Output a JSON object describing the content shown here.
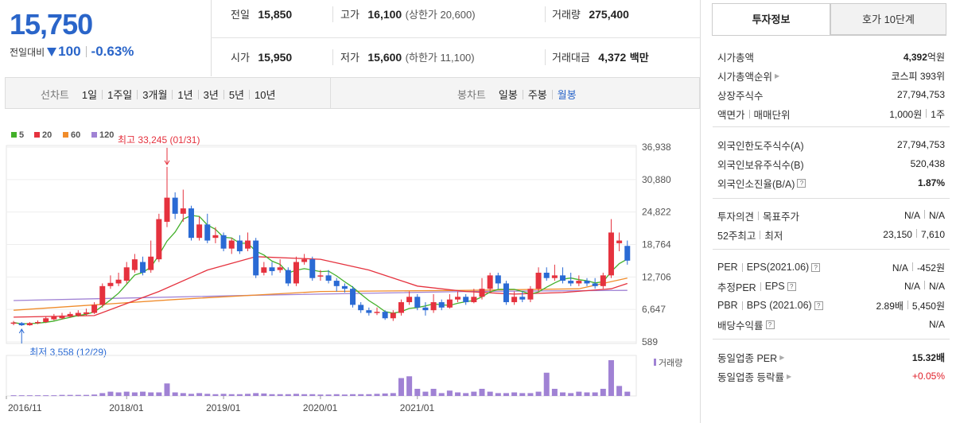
{
  "quote": {
    "price": "15,750",
    "change_label": "전일대비",
    "change_value": "100",
    "change_pct": "-0.63%",
    "prev_label": "전일",
    "prev_value": "15,850",
    "high_label": "고가",
    "high_value": "16,100",
    "upper_limit": "(상한가 20,600)",
    "volume_label": "거래량",
    "volume_value": "275,400",
    "open_label": "시가",
    "open_value": "15,950",
    "low_label": "저가",
    "low_value": "15,600",
    "lower_limit": "(하한가 11,100)",
    "amount_label": "거래대금",
    "amount_value": "4,372",
    "amount_unit": "백만"
  },
  "toolbar": {
    "line_label": "선차트",
    "line_periods": [
      "1일",
      "1주일",
      "3개월",
      "1년",
      "3년",
      "5년",
      "10년"
    ],
    "candle_label": "봉차트",
    "candle_periods": [
      "일봉",
      "주봉",
      "월봉"
    ],
    "candle_selected": "월봉"
  },
  "chart": {
    "ma_legend": [
      {
        "label": "5",
        "color": "#43b02a"
      },
      {
        "label": "20",
        "color": "#e5323e"
      },
      {
        "label": "60",
        "color": "#f08c2b"
      },
      {
        "label": "120",
        "color": "#a082d4"
      }
    ],
    "high_annotation": "최고 33,245 (01/31)",
    "low_annotation": "최저 3,558 (12/29)",
    "y_ticks": [
      "36,938",
      "30,880",
      "24,822",
      "18,764",
      "12,706",
      "6,647",
      "589"
    ],
    "x_ticks": [
      "2016/11",
      "2018/01",
      "2019/01",
      "2020/01",
      "2021/01"
    ],
    "volume_legend": "거래량",
    "up_color": "#e5323e",
    "down_color": "#2a6ad4",
    "volume_color": "#a082d4"
  },
  "chart_data": {
    "type": "candlestick",
    "period": "monthly",
    "y_axis_ticks": [
      36938,
      30880,
      24822,
      18764,
      12706,
      6647,
      589
    ],
    "annotations": {
      "high": {
        "value": 33245,
        "date": "01/31"
      },
      "low": {
        "value": 3558,
        "date": "12/29"
      }
    },
    "candles": [
      {
        "o": 4000,
        "c": 4200,
        "h": 4500,
        "l": 3700
      },
      {
        "o": 4100,
        "c": 3700,
        "h": 4300,
        "l": 3558
      },
      {
        "o": 3700,
        "c": 4100,
        "h": 4300,
        "l": 3600
      },
      {
        "o": 4100,
        "c": 4300,
        "h": 4600,
        "l": 3900
      },
      {
        "o": 4300,
        "c": 5000,
        "h": 5300,
        "l": 4100
      },
      {
        "o": 4800,
        "c": 5300,
        "h": 5800,
        "l": 4600
      },
      {
        "o": 5000,
        "c": 5500,
        "h": 6000,
        "l": 4800
      },
      {
        "o": 5300,
        "c": 5800,
        "h": 6200,
        "l": 5100
      },
      {
        "o": 5500,
        "c": 6000,
        "h": 6500,
        "l": 5300
      },
      {
        "o": 5800,
        "c": 6100,
        "h": 6800,
        "l": 5500
      },
      {
        "o": 6000,
        "c": 7500,
        "h": 8000,
        "l": 5800
      },
      {
        "o": 7500,
        "c": 11000,
        "h": 11500,
        "l": 7000
      },
      {
        "o": 11000,
        "c": 11600,
        "h": 13000,
        "l": 10500
      },
      {
        "o": 11500,
        "c": 12200,
        "h": 13500,
        "l": 11000
      },
      {
        "o": 12000,
        "c": 14500,
        "h": 15500,
        "l": 11500
      },
      {
        "o": 14000,
        "c": 16000,
        "h": 17000,
        "l": 13500
      },
      {
        "o": 15500,
        "c": 13500,
        "h": 16500,
        "l": 13000
      },
      {
        "o": 14000,
        "c": 16500,
        "h": 19500,
        "l": 13500
      },
      {
        "o": 16000,
        "c": 23500,
        "h": 24500,
        "l": 15500
      },
      {
        "o": 23000,
        "c": 27500,
        "h": 33245,
        "l": 22000
      },
      {
        "o": 27500,
        "c": 24500,
        "h": 28500,
        "l": 23500
      },
      {
        "o": 24500,
        "c": 25500,
        "h": 29000,
        "l": 23000
      },
      {
        "o": 25500,
        "c": 20000,
        "h": 26000,
        "l": 19500
      },
      {
        "o": 20000,
        "c": 22500,
        "h": 24000,
        "l": 19500
      },
      {
        "o": 22500,
        "c": 19500,
        "h": 24500,
        "l": 19000
      },
      {
        "o": 20000,
        "c": 20500,
        "h": 22000,
        "l": 19000
      },
      {
        "o": 20500,
        "c": 18000,
        "h": 21000,
        "l": 17500
      },
      {
        "o": 18000,
        "c": 19500,
        "h": 20000,
        "l": 17000
      },
      {
        "o": 19500,
        "c": 17500,
        "h": 20500,
        "l": 17000
      },
      {
        "o": 18000,
        "c": 19500,
        "h": 21000,
        "l": 17500
      },
      {
        "o": 19500,
        "c": 13000,
        "h": 20000,
        "l": 12500
      },
      {
        "o": 13500,
        "c": 14500,
        "h": 15500,
        "l": 13000
      },
      {
        "o": 14500,
        "c": 13800,
        "h": 15500,
        "l": 13000
      },
      {
        "o": 14000,
        "c": 14500,
        "h": 16000,
        "l": 13500
      },
      {
        "o": 14000,
        "c": 11500,
        "h": 14500,
        "l": 11000
      },
      {
        "o": 11500,
        "c": 15500,
        "h": 16500,
        "l": 11000
      },
      {
        "o": 15500,
        "c": 16000,
        "h": 17000,
        "l": 15000
      },
      {
        "o": 16000,
        "c": 12500,
        "h": 16500,
        "l": 12000
      },
      {
        "o": 13000,
        "c": 13000,
        "h": 14000,
        "l": 12000
      },
      {
        "o": 13000,
        "c": 12000,
        "h": 14000,
        "l": 11500
      },
      {
        "o": 12000,
        "c": 11000,
        "h": 12500,
        "l": 10000
      },
      {
        "o": 11000,
        "c": 10500,
        "h": 11500,
        "l": 9800
      },
      {
        "o": 10500,
        "c": 7500,
        "h": 11000,
        "l": 7000
      },
      {
        "o": 7500,
        "c": 6500,
        "h": 8000,
        "l": 6000
      },
      {
        "o": 6500,
        "c": 6000,
        "h": 7000,
        "l": 5500
      },
      {
        "o": 6000,
        "c": 6200,
        "h": 7000,
        "l": 5600
      },
      {
        "o": 6200,
        "c": 5000,
        "h": 6500,
        "l": 4700
      },
      {
        "o": 5000,
        "c": 6000,
        "h": 6500,
        "l": 4500
      },
      {
        "o": 6000,
        "c": 8000,
        "h": 8500,
        "l": 5500
      },
      {
        "o": 8000,
        "c": 9000,
        "h": 10000,
        "l": 7500
      },
      {
        "o": 9000,
        "c": 7000,
        "h": 9500,
        "l": 6500
      },
      {
        "o": 7000,
        "c": 6500,
        "h": 8000,
        "l": 5500
      },
      {
        "o": 6500,
        "c": 8000,
        "h": 9500,
        "l": 6000
      },
      {
        "o": 8000,
        "c": 7000,
        "h": 8500,
        "l": 6500
      },
      {
        "o": 7000,
        "c": 8500,
        "h": 9500,
        "l": 6800
      },
      {
        "o": 8500,
        "c": 9000,
        "h": 10000,
        "l": 8000
      },
      {
        "o": 9000,
        "c": 8000,
        "h": 9500,
        "l": 7500
      },
      {
        "o": 8000,
        "c": 9000,
        "h": 10500,
        "l": 7800
      },
      {
        "o": 9000,
        "c": 10500,
        "h": 12500,
        "l": 8500
      },
      {
        "o": 10500,
        "c": 13000,
        "h": 13500,
        "l": 10000
      },
      {
        "o": 13000,
        "c": 11500,
        "h": 13500,
        "l": 10500
      },
      {
        "o": 11500,
        "c": 8000,
        "h": 12000,
        "l": 7500
      },
      {
        "o": 8000,
        "c": 9000,
        "h": 10000,
        "l": 7500
      },
      {
        "o": 9000,
        "c": 8500,
        "h": 10000,
        "l": 8000
      },
      {
        "o": 8500,
        "c": 10500,
        "h": 11000,
        "l": 8000
      },
      {
        "o": 10500,
        "c": 13500,
        "h": 14500,
        "l": 10000
      },
      {
        "o": 13500,
        "c": 12500,
        "h": 14500,
        "l": 12000
      },
      {
        "o": 12500,
        "c": 13000,
        "h": 15000,
        "l": 12000
      },
      {
        "o": 13000,
        "c": 12000,
        "h": 14500,
        "l": 11500
      },
      {
        "o": 12000,
        "c": 11500,
        "h": 13500,
        "l": 11000
      },
      {
        "o": 11500,
        "c": 12000,
        "h": 13000,
        "l": 11000
      },
      {
        "o": 12000,
        "c": 11500,
        "h": 12500,
        "l": 11000
      },
      {
        "o": 11500,
        "c": 11000,
        "h": 12500,
        "l": 10500
      },
      {
        "o": 11000,
        "c": 13000,
        "h": 13500,
        "l": 10500
      },
      {
        "o": 13000,
        "c": 21000,
        "h": 23500,
        "l": 12500
      },
      {
        "o": 19000,
        "c": 19500,
        "h": 21000,
        "l": 17500
      },
      {
        "o": 18500,
        "c": 15750,
        "h": 19500,
        "l": 15000
      }
    ],
    "volume": [
      0.02,
      0.02,
      0.02,
      0.02,
      0.02,
      0.02,
      0.03,
      0.03,
      0.03,
      0.03,
      0.04,
      0.08,
      0.12,
      0.1,
      0.12,
      0.1,
      0.12,
      0.1,
      0.1,
      0.35,
      0.1,
      0.08,
      0.06,
      0.08,
      0.06,
      0.05,
      0.06,
      0.05,
      0.05,
      0.06,
      0.08,
      0.07,
      0.05,
      0.05,
      0.05,
      0.06,
      0.05,
      0.05,
      0.04,
      0.04,
      0.05,
      0.04,
      0.05,
      0.05,
      0.05,
      0.06,
      0.07,
      0.08,
      0.5,
      0.55,
      0.2,
      0.12,
      0.2,
      0.08,
      0.15,
      0.1,
      0.08,
      0.12,
      0.2,
      0.12,
      0.08,
      0.08,
      0.1,
      0.08,
      0.08,
      0.12,
      0.65,
      0.2,
      0.1,
      0.08,
      0.12,
      0.1,
      0.1,
      0.2,
      1.0,
      0.28,
      0.12
    ],
    "ma5": [],
    "ma20_points": [
      [
        0,
        5200
      ],
      [
        10,
        5500
      ],
      [
        18,
        10000
      ],
      [
        24,
        14000
      ],
      [
        30,
        16500
      ],
      [
        38,
        16000
      ],
      [
        44,
        14000
      ],
      [
        50,
        11000
      ],
      [
        56,
        10000
      ],
      [
        62,
        9500
      ],
      [
        68,
        9800
      ],
      [
        74,
        10500
      ],
      [
        76,
        11500
      ]
    ],
    "ma60_points": [
      [
        0,
        6500
      ],
      [
        20,
        8500
      ],
      [
        38,
        10000
      ],
      [
        56,
        10200
      ],
      [
        70,
        10500
      ],
      [
        76,
        12500
      ]
    ],
    "ma120_points": [
      [
        0,
        8300
      ],
      [
        30,
        9300
      ],
      [
        56,
        10000
      ],
      [
        76,
        10200
      ]
    ]
  },
  "panel": {
    "tab_active": "투자정보",
    "tab_other": "호가 10단계",
    "rows1": [
      {
        "k": "시가총액",
        "v_strong": "4,392",
        "v_unit": "억원"
      },
      {
        "k": "시가총액순위",
        "v": "코스피 393위",
        "arrow": true
      },
      {
        "k": "상장주식수",
        "v": "27,794,753"
      },
      {
        "k": "액면가",
        "k2": "매매단위",
        "v": "1,000원",
        "v2": "1주"
      }
    ],
    "rows2": [
      {
        "k": "외국인한도주식수(A)",
        "v": "27,794,753"
      },
      {
        "k": "외국인보유주식수(B)",
        "v": "520,438"
      },
      {
        "k": "외국인소진율(B/A)",
        "v": "1.87%",
        "strong": true,
        "q": true
      }
    ],
    "rows3": [
      {
        "k": "투자의견",
        "k2": "목표주가",
        "v": "N/A",
        "v2": "N/A"
      },
      {
        "k": "52주최고",
        "k2": "최저",
        "v": "23,150",
        "v2": "7,610"
      }
    ],
    "rows4": [
      {
        "k": "PER",
        "k2": "EPS(2021.06)",
        "v": "N/A",
        "v2": "-452원",
        "q": true
      },
      {
        "k": "추정PER",
        "k2": "EPS",
        "v": "N/A",
        "v2": "N/A",
        "q": true
      },
      {
        "k": "PBR",
        "k2": "BPS (2021.06)",
        "v": "2.89배",
        "v2": "5,450원",
        "q": true
      },
      {
        "k": "배당수익률",
        "v": "N/A",
        "q": true
      }
    ],
    "rows5": [
      {
        "k": "동일업종 PER",
        "v": "15.32배",
        "strong": true,
        "arrow": true
      },
      {
        "k": "동일업종 등락률",
        "v": "+0.05%",
        "red": true,
        "arrow": true
      }
    ]
  }
}
